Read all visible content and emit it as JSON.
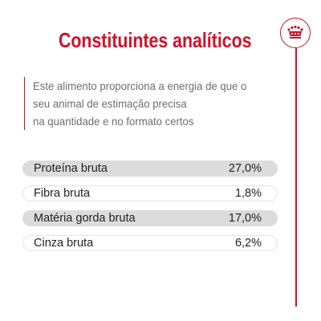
{
  "header": {
    "title": "Constituintes analíticos",
    "brand_icon": "royal-crown-icon"
  },
  "intro": {
    "lines": [
      "Este alimento proporciona a energia de que o",
      "seu animal de estimação precisa",
      "na quantidade e no formato certos"
    ]
  },
  "constituents": [
    {
      "label": "Proteína bruta",
      "value": "27,0%"
    },
    {
      "label": "Fibra bruta",
      "value": "1,8%"
    },
    {
      "label": "Matéria gorda bruta",
      "value": "17,0%"
    },
    {
      "label": "Cinza bruta",
      "value": "6,2%"
    }
  ],
  "colors": {
    "accent": "#d0112b",
    "text_muted": "#6d6e71",
    "row_shade": "#dcdcdd"
  }
}
